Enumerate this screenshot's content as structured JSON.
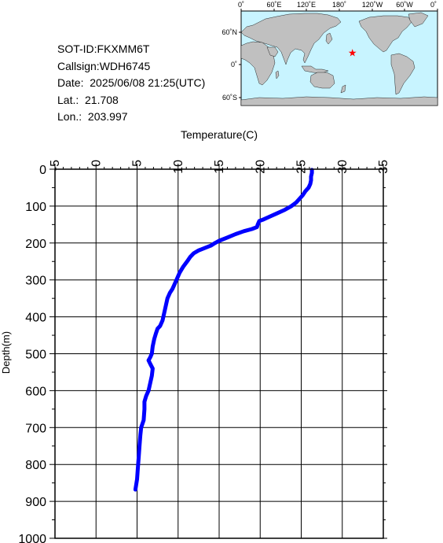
{
  "info": {
    "sot_id": "SOT-ID:FKXMM6T",
    "callsign": "Callsign:WDH6745",
    "date": "Date:  2025/06/08 21:25(UTC)",
    "lat": "Lat.:  21.708",
    "lon": "Lon.:  203.997"
  },
  "map": {
    "top_labels": [
      "0˚",
      "60˚E",
      "120˚E",
      "180˚",
      "120˚W",
      "60˚W",
      "0˚"
    ],
    "side_labels": [
      "60˚N",
      "0˚",
      "60˚S"
    ],
    "ocean_color": "#c8f4ff",
    "land_color": "#c0c0c0",
    "marker": {
      "lon": 203.997,
      "lat": 21.708,
      "color": "#ff0000",
      "symbol": "star"
    }
  },
  "chart_data": {
    "type": "line",
    "title": "",
    "xlabel": "Temperature(C)",
    "ylabel": "Depth(m)",
    "xlim": [
      -5,
      35
    ],
    "ylim": [
      0,
      1000
    ],
    "y_inverted": true,
    "x_ticks": [
      "-5",
      "0",
      "5",
      "10",
      "15",
      "20",
      "25",
      "30",
      "35"
    ],
    "y_ticks": [
      "0",
      "100",
      "200",
      "300",
      "400",
      "500",
      "600",
      "700",
      "800",
      "900",
      "1000"
    ],
    "grid": true,
    "series": [
      {
        "color": "#0000ff",
        "points": [
          [
            26.3,
            2
          ],
          [
            26.3,
            10
          ],
          [
            26.2,
            20
          ],
          [
            26.2,
            30
          ],
          [
            26.1,
            40
          ],
          [
            25.9,
            50
          ],
          [
            25.5,
            60
          ],
          [
            25.2,
            70
          ],
          [
            24.8,
            80
          ],
          [
            24.4,
            90
          ],
          [
            23.8,
            100
          ],
          [
            23.0,
            110
          ],
          [
            22.0,
            120
          ],
          [
            21.0,
            130
          ],
          [
            20.3,
            137
          ],
          [
            19.9,
            140
          ],
          [
            19.7,
            150
          ],
          [
            19.6,
            157
          ],
          [
            19.0,
            162
          ],
          [
            18.0,
            168
          ],
          [
            17.0,
            176
          ],
          [
            16.0,
            185
          ],
          [
            15.0,
            194
          ],
          [
            14.5,
            200
          ],
          [
            14.0,
            207
          ],
          [
            13.3,
            213
          ],
          [
            12.5,
            220
          ],
          [
            11.9,
            228
          ],
          [
            11.5,
            237
          ],
          [
            11.1,
            250
          ],
          [
            10.6,
            265
          ],
          [
            10.2,
            280
          ],
          [
            9.9,
            295
          ],
          [
            9.6,
            310
          ],
          [
            9.3,
            325
          ],
          [
            9.0,
            335
          ],
          [
            8.7,
            350
          ],
          [
            8.5,
            370
          ],
          [
            8.3,
            390
          ],
          [
            8.1,
            410
          ],
          [
            7.8,
            425
          ],
          [
            7.5,
            432
          ],
          [
            7.3,
            445
          ],
          [
            7.1,
            460
          ],
          [
            6.9,
            480
          ],
          [
            6.8,
            500
          ],
          [
            6.6,
            510
          ],
          [
            6.4,
            518
          ],
          [
            6.6,
            527
          ],
          [
            6.9,
            540
          ],
          [
            6.8,
            560
          ],
          [
            6.6,
            580
          ],
          [
            6.4,
            600
          ],
          [
            6.1,
            615
          ],
          [
            5.9,
            630
          ],
          [
            5.9,
            650
          ],
          [
            5.8,
            680
          ],
          [
            5.5,
            700
          ],
          [
            5.4,
            720
          ],
          [
            5.3,
            750
          ],
          [
            5.2,
            780
          ],
          [
            5.1,
            810
          ],
          [
            5.0,
            840
          ],
          [
            4.8,
            868
          ]
        ]
      }
    ]
  }
}
